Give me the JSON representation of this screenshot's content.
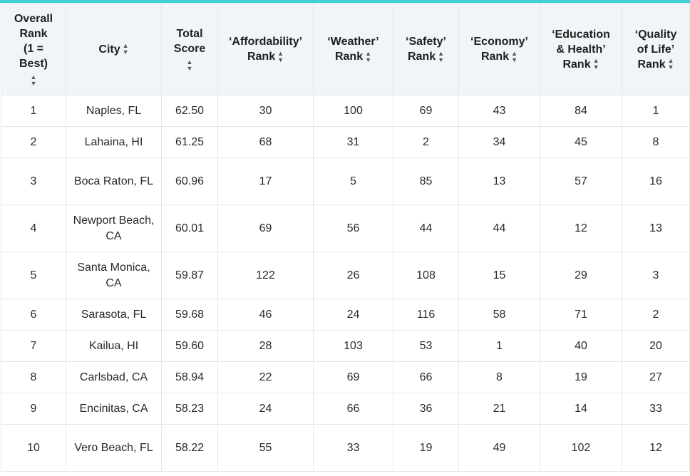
{
  "columns": [
    {
      "label_lines": [
        "Overall",
        "Rank",
        "(1 =",
        "Best)"
      ],
      "sort_icon": "sort-icon"
    },
    {
      "label_lines": [
        "City"
      ],
      "sort_icon": "sort-icon"
    },
    {
      "label_lines": [
        "Total",
        "Score"
      ],
      "sort_icon": "sort-icon"
    },
    {
      "label_lines": [
        "‘Affordability’",
        "Rank"
      ],
      "sort_icon": "sort-icon"
    },
    {
      "label_lines": [
        "‘Weather’",
        "Rank"
      ],
      "sort_icon": "sort-icon"
    },
    {
      "label_lines": [
        "‘Safety’",
        "Rank"
      ],
      "sort_icon": "sort-icon"
    },
    {
      "label_lines": [
        "‘Economy’",
        "Rank"
      ],
      "sort_icon": "sort-icon"
    },
    {
      "label_lines": [
        "‘Education",
        "& Health’",
        "Rank"
      ],
      "sort_icon": "sort-icon"
    },
    {
      "label_lines": [
        "‘Quality",
        "of Life’",
        "Rank"
      ],
      "sort_icon": "sort-icon"
    }
  ],
  "rows": [
    {
      "rank": "1",
      "city": "Naples, FL",
      "score": "62.50",
      "affordability": "30",
      "weather": "100",
      "safety": "69",
      "economy": "43",
      "education_health": "84",
      "quality_of_life": "1"
    },
    {
      "rank": "2",
      "city": "Lahaina, HI",
      "score": "61.25",
      "affordability": "68",
      "weather": "31",
      "safety": "2",
      "economy": "34",
      "education_health": "45",
      "quality_of_life": "8"
    },
    {
      "rank": "3",
      "city": "Boca Raton, FL",
      "score": "60.96",
      "affordability": "17",
      "weather": "5",
      "safety": "85",
      "economy": "13",
      "education_health": "57",
      "quality_of_life": "16"
    },
    {
      "rank": "4",
      "city": "Newport Beach, CA",
      "score": "60.01",
      "affordability": "69",
      "weather": "56",
      "safety": "44",
      "economy": "44",
      "education_health": "12",
      "quality_of_life": "13"
    },
    {
      "rank": "5",
      "city": "Santa Monica, CA",
      "score": "59.87",
      "affordability": "122",
      "weather": "26",
      "safety": "108",
      "economy": "15",
      "education_health": "29",
      "quality_of_life": "3"
    },
    {
      "rank": "6",
      "city": "Sarasota, FL",
      "score": "59.68",
      "affordability": "46",
      "weather": "24",
      "safety": "116",
      "economy": "58",
      "education_health": "71",
      "quality_of_life": "2"
    },
    {
      "rank": "7",
      "city": "Kailua, HI",
      "score": "59.60",
      "affordability": "28",
      "weather": "103",
      "safety": "53",
      "economy": "1",
      "education_health": "40",
      "quality_of_life": "20"
    },
    {
      "rank": "8",
      "city": "Carlsbad, CA",
      "score": "58.94",
      "affordability": "22",
      "weather": "69",
      "safety": "66",
      "economy": "8",
      "education_health": "19",
      "quality_of_life": "27"
    },
    {
      "rank": "9",
      "city": "Encinitas, CA",
      "score": "58.23",
      "affordability": "24",
      "weather": "66",
      "safety": "36",
      "economy": "21",
      "education_health": "14",
      "quality_of_life": "33"
    },
    {
      "rank": "10",
      "city": "Vero Beach, FL",
      "score": "58.22",
      "affordability": "55",
      "weather": "33",
      "safety": "19",
      "economy": "49",
      "education_health": "102",
      "quality_of_life": "12"
    }
  ],
  "colors": {
    "accent_bar": "#41d1d6",
    "header_bg": "#f2f5f8",
    "border": "#e3e6ea"
  }
}
